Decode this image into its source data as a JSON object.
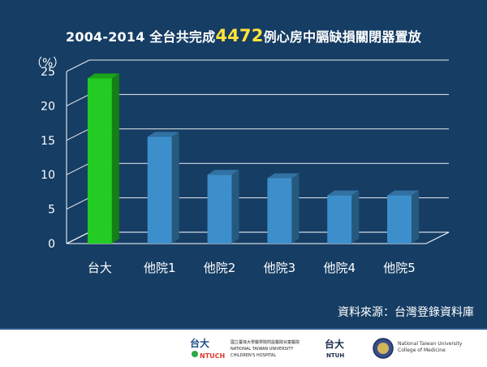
{
  "title": {
    "prefix": "2004-2014 全台共完成",
    "highlight": "4472",
    "suffix": "例心房中膈缺損關閉器置放",
    "highlight_color": "#ffe43a"
  },
  "source": "資料來源：台灣登錄資料庫",
  "footer": {
    "ntuch_line1": "國立臺灣大學醫學院附設醫院兒童醫院",
    "ntuch_line2": "NATIONAL TAIWAN UNIVERSITY CHILDREN'S HOSPITAL",
    "college_line1": "National Taiwan University",
    "college_line2": "College of Medicine"
  },
  "colors": {
    "background": "#163d64",
    "highlight_bar": "#22cc22",
    "other_bar": "#3d8fcc",
    "grid": "#ffffff"
  },
  "chart_data": {
    "type": "bar",
    "ylabel": "（%）",
    "xlabel": "",
    "ylim": [
      0,
      25
    ],
    "yticks": [
      0,
      5,
      10,
      15,
      20,
      25
    ],
    "grid": true,
    "categories": [
      "台大",
      "他院1",
      "他院2",
      "他院3",
      "他院4",
      "他院5"
    ],
    "values": [
      24,
      15.5,
      10,
      9.5,
      7,
      7
    ],
    "highlight_index": 0
  }
}
